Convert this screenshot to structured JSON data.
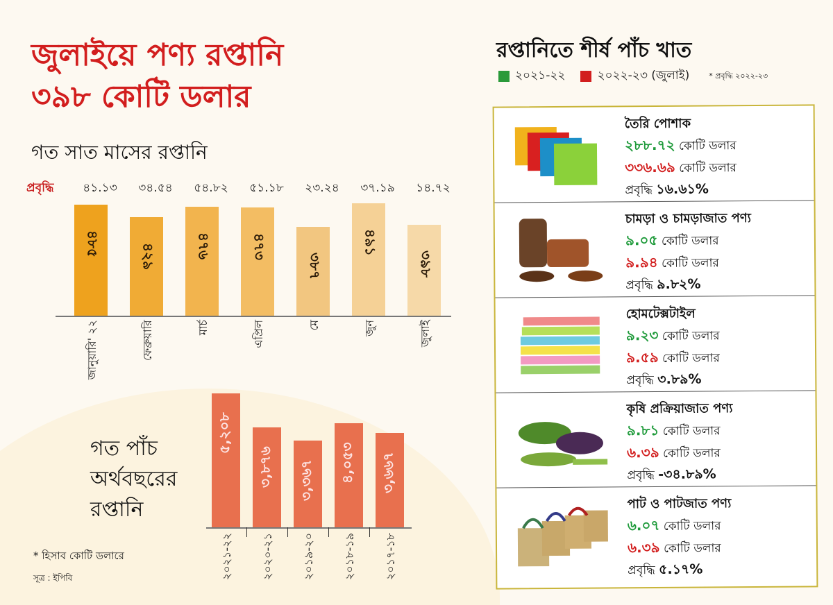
{
  "headline": {
    "line1": "জুলাইয়ে পণ্য রপ্তানি",
    "line2": "৩৯৮ কোটি ডলার"
  },
  "monthly_title": "গত সাত মাসের রপ্তানি",
  "growth_label": "প্রবৃদ্ধি",
  "yearly_title": [
    "গত পাঁচ",
    "অর্থবছরের",
    "রপ্তানি"
  ],
  "note": "* হিসাব কোটি ডলারে",
  "source": "সূত্র : ইপিবি",
  "chart_data": [
    {
      "type": "bar",
      "title": "গত সাত মাসের রপ্তানি",
      "categories": [
        "জানুয়ারি' ২২",
        "ফেব্রুয়ারি",
        "মার্চ",
        "এপ্রিল",
        "মে",
        "জুন",
        "জুলাই"
      ],
      "values": [
        485,
        429,
        476,
        473,
        387,
        491,
        398
      ],
      "value_labels": [
        "৪৮৫",
        "৪২৯",
        "৪৭৬",
        "৪৭৩",
        "৩৮৭",
        "৪৯১",
        "৩৯৮"
      ],
      "growth_labels": [
        "৪১.১৩",
        "৩৪.৫৪",
        "৫৪.৮২",
        "৫১.১৮",
        "২৩.২৪",
        "৩৭.১৯",
        "১৪.৭২"
      ],
      "growth": [
        41.13,
        34.54,
        54.82,
        51.18,
        23.24,
        37.19,
        14.72
      ],
      "unit": "কোটি ডলার",
      "colors": [
        "#eea21e",
        "#f0ab35",
        "#f2b44e",
        "#f3bd63",
        "#f2c680",
        "#f5d196",
        "#f6d9a8"
      ]
    },
    {
      "type": "bar",
      "title": "গত পাঁচ অর্থবছরের রপ্তানি",
      "categories": [
        "২০২১-২২",
        "২০২০-২১",
        "২০১৯-২০",
        "২০১৮-১৯",
        "২০১৭-১৮"
      ],
      "values": [
        5208,
        3876,
        3367,
        4053,
        3667
      ],
      "value_labels": [
        "৫,২০৮",
        "৩,৮৭৬",
        "৩,৩৬৭",
        "৪,০৫৩",
        "৩,৬৬৭"
      ],
      "unit": "কোটি ডলার",
      "color": "#e8704e"
    }
  ],
  "sectors_panel": {
    "title": "রপ্তানিতে শীর্ষ পাঁচ খাত",
    "legend": [
      {
        "label": "২০২১-২২",
        "color": "#2a9a3a"
      },
      {
        "label": "২০২২-২৩  (জুলাই)",
        "color": "#d21e1e"
      }
    ],
    "legend_note": "* প্রবৃদ্ধি ২০২২-২৩",
    "unit": "কোটি ডলার",
    "growth_prefix": "প্রবৃদ্ধি",
    "sectors": [
      {
        "name": "তৈরি পোশাক",
        "v2122": "২৮৮.৭২",
        "v2223": "৩৩৬.৬৯",
        "growth": "১৬.৬১%",
        "icon": "tshirt-icon"
      },
      {
        "name": "চামড়া ও চামড়াজাত পণ্য",
        "v2122": "৯.০৫",
        "v2223": "৯.৯৪",
        "growth": "৯.৮২%",
        "icon": "leather-goods-icon"
      },
      {
        "name": "হোমটেক্সটাইল",
        "v2122": "৯.২৩",
        "v2223": "৯.৫৯",
        "growth": "৩.৮৯%",
        "icon": "towels-icon"
      },
      {
        "name": "কৃষি প্রক্রিয়াজাত পণ্য",
        "v2122": "৯.৮১",
        "v2223": "৬.৩৯",
        "growth": "-৩৪.৮৯%",
        "icon": "vegetables-icon"
      },
      {
        "name": "পাট ও পাটজাত পণ্য",
        "v2122": "৬.০৭",
        "v2223": "৬.৩৯",
        "growth": "৫.১৭%",
        "icon": "jute-bags-icon"
      }
    ]
  }
}
